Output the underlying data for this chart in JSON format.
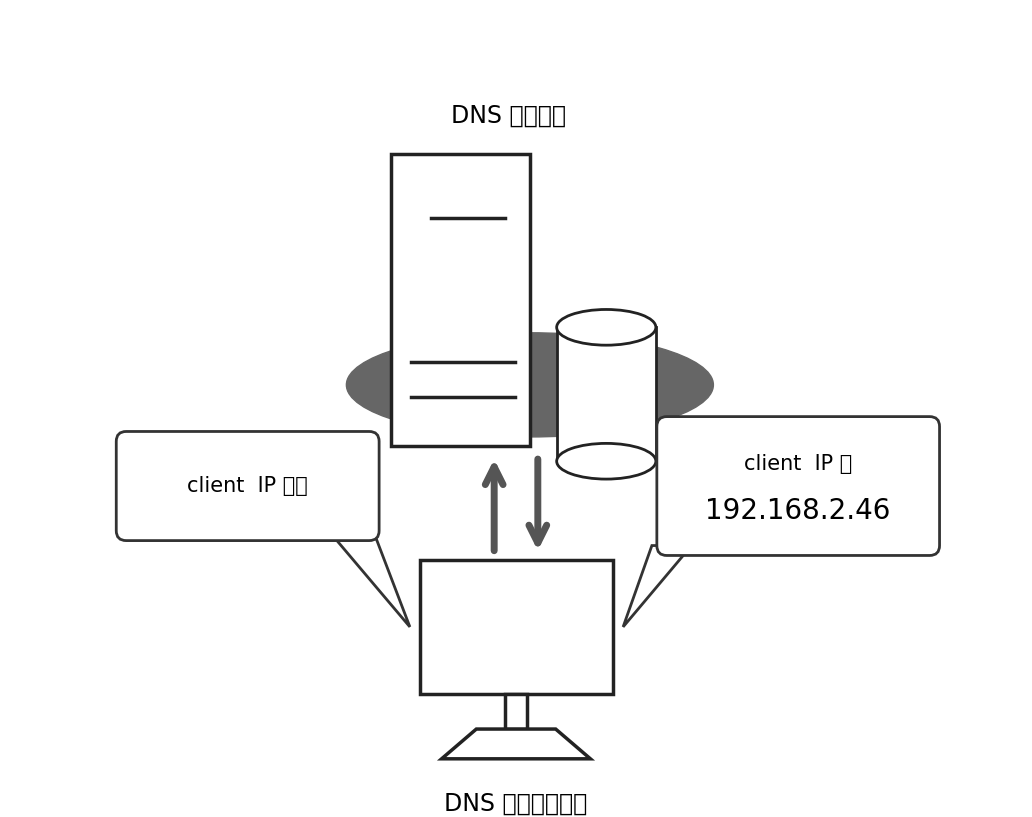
{
  "background_color": "#ffffff",
  "server_label": "DNS サーバー",
  "client_label": "DNS クライアント",
  "query_bubble_text": "client  IP は？",
  "response_bubble_line1": "client  IP は",
  "response_bubble_line2": "192.168.2.46",
  "server_color": "#ffffff",
  "server_outline": "#222222",
  "ellipse_color": "#666666",
  "arrow_color": "#555555",
  "bubble_fill": "#ffffff",
  "bubble_outline": "#333333",
  "label_fontsize": 17,
  "bubble_fontsize": 15,
  "response_fontsize_line2": 20
}
